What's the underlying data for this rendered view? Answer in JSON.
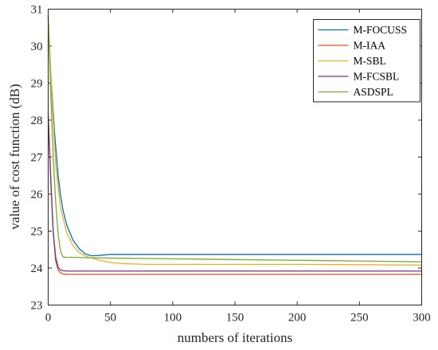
{
  "chart_data": {
    "type": "line",
    "title": "",
    "xlabel": "numbers of iterations",
    "ylabel": "value of cost function (dB)",
    "xlim": [
      0,
      300
    ],
    "ylim": [
      23,
      31
    ],
    "xticks": [
      0,
      50,
      100,
      150,
      200,
      250,
      300
    ],
    "yticks": [
      23,
      24,
      25,
      26,
      27,
      28,
      29,
      30,
      31
    ],
    "grid": false,
    "legend_position": "top-right",
    "series": [
      {
        "name": "M-FOCUSS",
        "color": "#0072BD",
        "x": [
          0,
          2,
          5,
          8,
          10,
          12,
          15,
          20,
          25,
          30,
          35,
          40,
          50,
          60,
          80,
          100,
          150,
          200,
          250,
          300
        ],
        "y": [
          30.8,
          29.3,
          27.7,
          26.5,
          25.95,
          25.55,
          25.15,
          24.75,
          24.52,
          24.38,
          24.33,
          24.34,
          24.37,
          24.37,
          24.37,
          24.37,
          24.37,
          24.37,
          24.37,
          24.37
        ]
      },
      {
        "name": "M-IAA",
        "color": "#D95319",
        "x": [
          0,
          2,
          4,
          6,
          8,
          10,
          12,
          15,
          20,
          50,
          100,
          150,
          200,
          250,
          300
        ],
        "y": [
          28.2,
          26.5,
          25.0,
          24.2,
          23.95,
          23.87,
          23.84,
          23.83,
          23.83,
          23.83,
          23.83,
          23.83,
          23.83,
          23.83,
          23.83
        ]
      },
      {
        "name": "M-SBL",
        "color": "#EDB120",
        "x": [
          0,
          3,
          6,
          10,
          15,
          20,
          25,
          30,
          40,
          50,
          60,
          80,
          100,
          150,
          200,
          250,
          300
        ],
        "y": [
          30.8,
          28.6,
          26.8,
          25.6,
          24.95,
          24.6,
          24.42,
          24.32,
          24.22,
          24.15,
          24.12,
          24.1,
          24.1,
          24.1,
          24.1,
          24.09,
          24.08
        ]
      },
      {
        "name": "M-FCSBL",
        "color": "#7E2F8E",
        "x": [
          0,
          2,
          4,
          6,
          8,
          10,
          12,
          15,
          20,
          50,
          100,
          150,
          200,
          250,
          300
        ],
        "y": [
          28.1,
          26.4,
          25.0,
          24.3,
          24.02,
          23.95,
          23.93,
          23.92,
          23.92,
          23.92,
          23.92,
          23.92,
          23.92,
          23.92,
          23.92
        ]
      },
      {
        "name": "ASDSPL",
        "color": "#77AC30",
        "x": [
          0,
          2,
          4,
          6,
          8,
          10,
          12,
          15,
          20,
          30,
          50,
          100,
          150,
          200,
          250,
          300
        ],
        "y": [
          30.8,
          28.8,
          27.0,
          25.8,
          24.9,
          24.45,
          24.3,
          24.29,
          24.29,
          24.28,
          24.27,
          24.25,
          24.23,
          24.21,
          24.19,
          24.17
        ]
      }
    ]
  }
}
